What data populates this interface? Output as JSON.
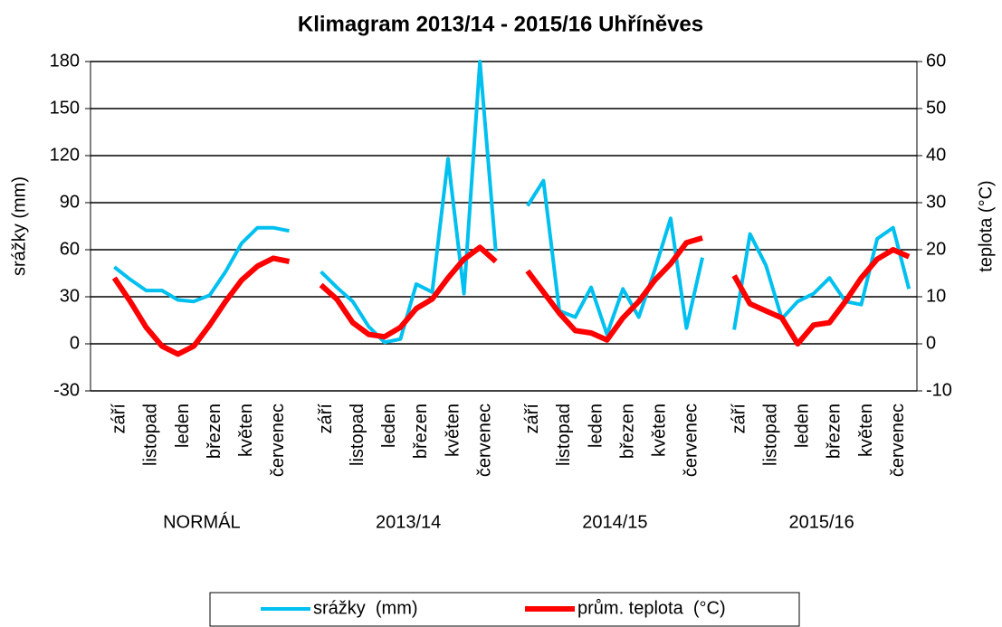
{
  "chart_data": {
    "type": "line",
    "title": "Klimagram 2013/14 - 2015/16 Uhříněves",
    "ylabel": "srážky (mm)",
    "y2label": "teplota (°C)",
    "groups": [
      "NORMÁL",
      "2013/14",
      "2014/15",
      "2015/16"
    ],
    "categories": [
      null,
      "září",
      null,
      "listopad",
      null,
      "leden",
      null,
      "březen",
      null,
      "květen",
      null,
      "červenec",
      null,
      null,
      "září",
      null,
      "listopad",
      null,
      "leden",
      null,
      "březen",
      null,
      "květen",
      null,
      "červenec",
      null,
      null,
      "září",
      null,
      "listopad",
      null,
      "leden",
      null,
      "březen",
      null,
      "květen",
      null,
      "červenec",
      null,
      null,
      "září",
      null,
      "listopad",
      null,
      "leden",
      null,
      "březen",
      null,
      "květen",
      null,
      "červenec",
      null
    ],
    "series": [
      {
        "name": "srážky  (mm)",
        "color": "#00c0f0",
        "axis": "y",
        "values": [
          null,
          49,
          41,
          34,
          34,
          28,
          27,
          31,
          46,
          64,
          74,
          74,
          72,
          null,
          46,
          36,
          27,
          11,
          1,
          3,
          38,
          33,
          118,
          32,
          180,
          59,
          null,
          88,
          104,
          21,
          17,
          36,
          6,
          35,
          17,
          47,
          80,
          10,
          55,
          null,
          9,
          70,
          50,
          16,
          27,
          32,
          42,
          27,
          25,
          67,
          74,
          35
        ]
      },
      {
        "name": "prům. teplota  (°C)",
        "color": "#ff0000",
        "axis": "y2",
        "values": [
          null,
          14,
          9,
          3.5,
          -0.5,
          -2.2,
          -0.5,
          4,
          9,
          13.5,
          16.5,
          18.2,
          17.5,
          null,
          12.5,
          9.5,
          4.5,
          2,
          1.5,
          3.5,
          7.5,
          9.5,
          14,
          18,
          20.5,
          17.5,
          null,
          15.5,
          11,
          6.5,
          2.8,
          2.3,
          0.8,
          5.5,
          9,
          13.5,
          17,
          21.5,
          22.5,
          null,
          14.5,
          8.5,
          7,
          5.5,
          0,
          4,
          4.5,
          9,
          14,
          18,
          20,
          18.5
        ]
      }
    ],
    "ylim": [
      -30,
      180
    ],
    "yticks": [
      -30,
      0,
      30,
      60,
      90,
      120,
      150,
      180
    ],
    "y2lim": [
      -10,
      60
    ],
    "y2ticks": [
      -10,
      0,
      10,
      20,
      30,
      40,
      50,
      60
    ],
    "grid": true,
    "legend": "bottom"
  }
}
